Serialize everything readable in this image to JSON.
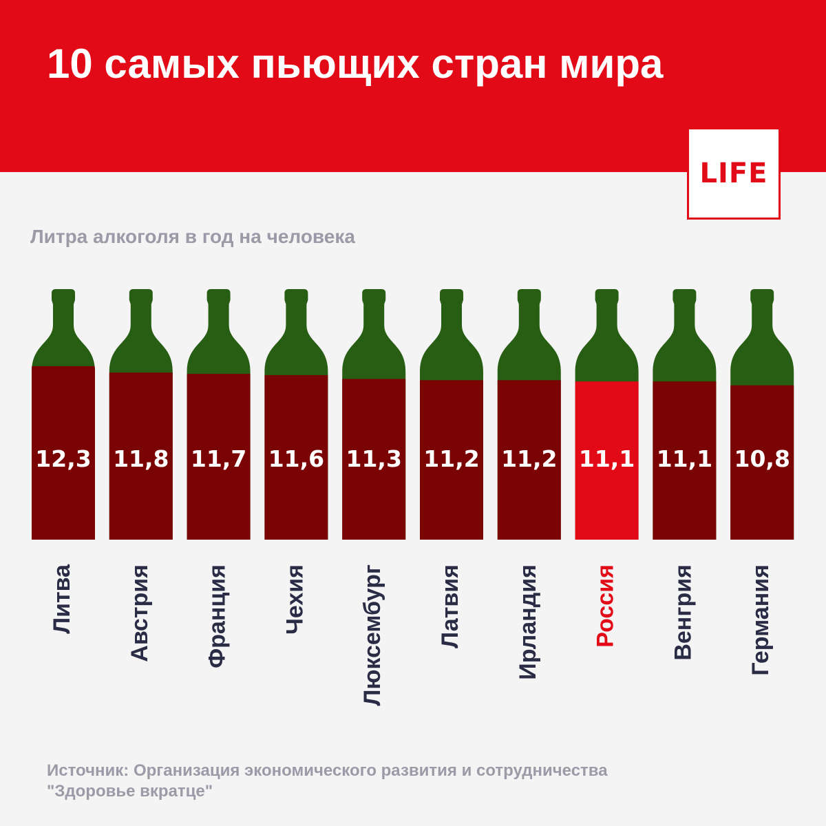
{
  "header": {
    "title": "10 самых пьющих стран мира",
    "logo": "LIFE"
  },
  "subtitle": "Литра алкоголя в год на человека",
  "source": {
    "line1": "Источник: Организация экономического развития и сотрудничества",
    "line2": "\"Здоровье вкратце\""
  },
  "colors": {
    "header_red": "#e20a16",
    "bottle_green": "#275e14",
    "liquid_dark": "#7a0404",
    "liquid_highlight": "#e20a16",
    "label_dark": "#2a2b45",
    "label_highlight": "#e20a16",
    "muted_text": "#9b9aa7"
  },
  "chart_data": {
    "type": "bar",
    "categories": [
      "Литва",
      "Австрия",
      "Франция",
      "Чехия",
      "Люксембург",
      "Латвия",
      "Ирландия",
      "Россия",
      "Венгрия",
      "Германия"
    ],
    "values": [
      12.3,
      11.8,
      11.7,
      11.6,
      11.3,
      11.2,
      11.2,
      11.1,
      11.1,
      10.8
    ],
    "value_labels": [
      "12,3",
      "11,8",
      "11,7",
      "11,6",
      "11,3",
      "11,2",
      "11,2",
      "11,1",
      "11,1",
      "10,8"
    ],
    "highlight": "Россия",
    "ylabel": "Литра алкоголя в год на человека"
  }
}
